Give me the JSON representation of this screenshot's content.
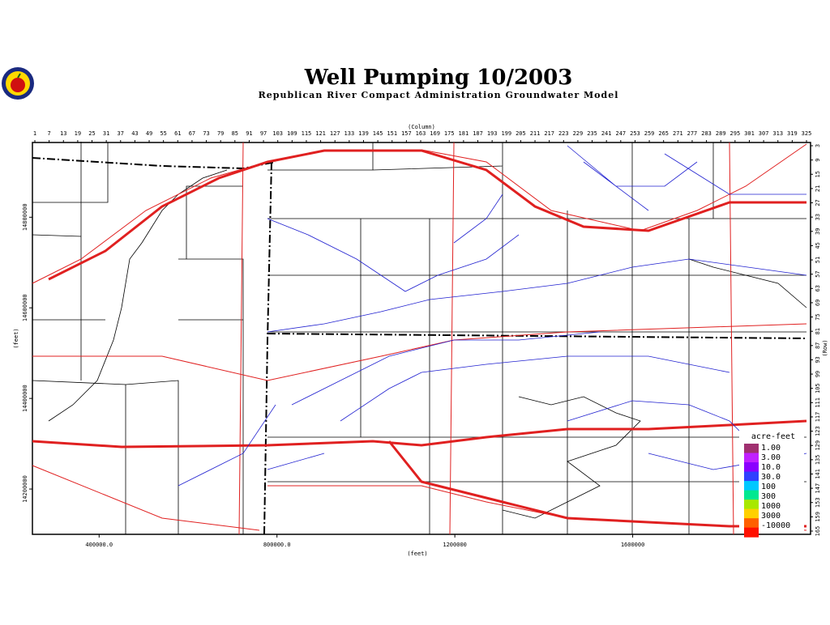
{
  "header": {
    "title": "Well Pumping 10/2003",
    "subtitle": "Republican River Compact Administration Groundwater Model"
  },
  "axes": {
    "column_label": "(Column)",
    "row_label": "(Row)",
    "x_label": "(feet)",
    "y_label": "(feet)",
    "columns": [
      1,
      7,
      13,
      19,
      25,
      31,
      37,
      43,
      49,
      55,
      61,
      67,
      73,
      79,
      85,
      91,
      97,
      103,
      109,
      115,
      121,
      127,
      133,
      139,
      145,
      151,
      157,
      163,
      169,
      175,
      181,
      187,
      193,
      199,
      205,
      211,
      217,
      223,
      229,
      235,
      241,
      247,
      253,
      259,
      265,
      271,
      277,
      283,
      289,
      295,
      301,
      307,
      313,
      319,
      325
    ],
    "rows": [
      3,
      9,
      15,
      21,
      27,
      33,
      39,
      45,
      51,
      57,
      63,
      69,
      75,
      81,
      87,
      93,
      99,
      105,
      111,
      117,
      123,
      129,
      135,
      141,
      147,
      153,
      159,
      165
    ],
    "xlim": [
      250000,
      2000000
    ],
    "xticks": [
      {
        "value": 400000,
        "label": "400000.0"
      },
      {
        "value": 800000,
        "label": "800000.0"
      },
      1200000,
      1600000
    ],
    "ylim": [
      14100000,
      14965000
    ],
    "yticks": [
      14200000,
      14400000,
      14600000,
      14800000
    ]
  },
  "legend": {
    "title": "acre-feet",
    "labels": [
      "1.00",
      "3.00",
      "10.0",
      "30.0",
      "100",
      "300",
      "1000",
      "3000",
      "-10000"
    ],
    "colors": [
      "#a03070",
      "#c020ff",
      "#8a00ff",
      "#3040ff",
      "#00c8ff",
      "#00e890",
      "#a8e800",
      "#ffd000",
      "#ff6000",
      "#ff1000"
    ]
  }
}
